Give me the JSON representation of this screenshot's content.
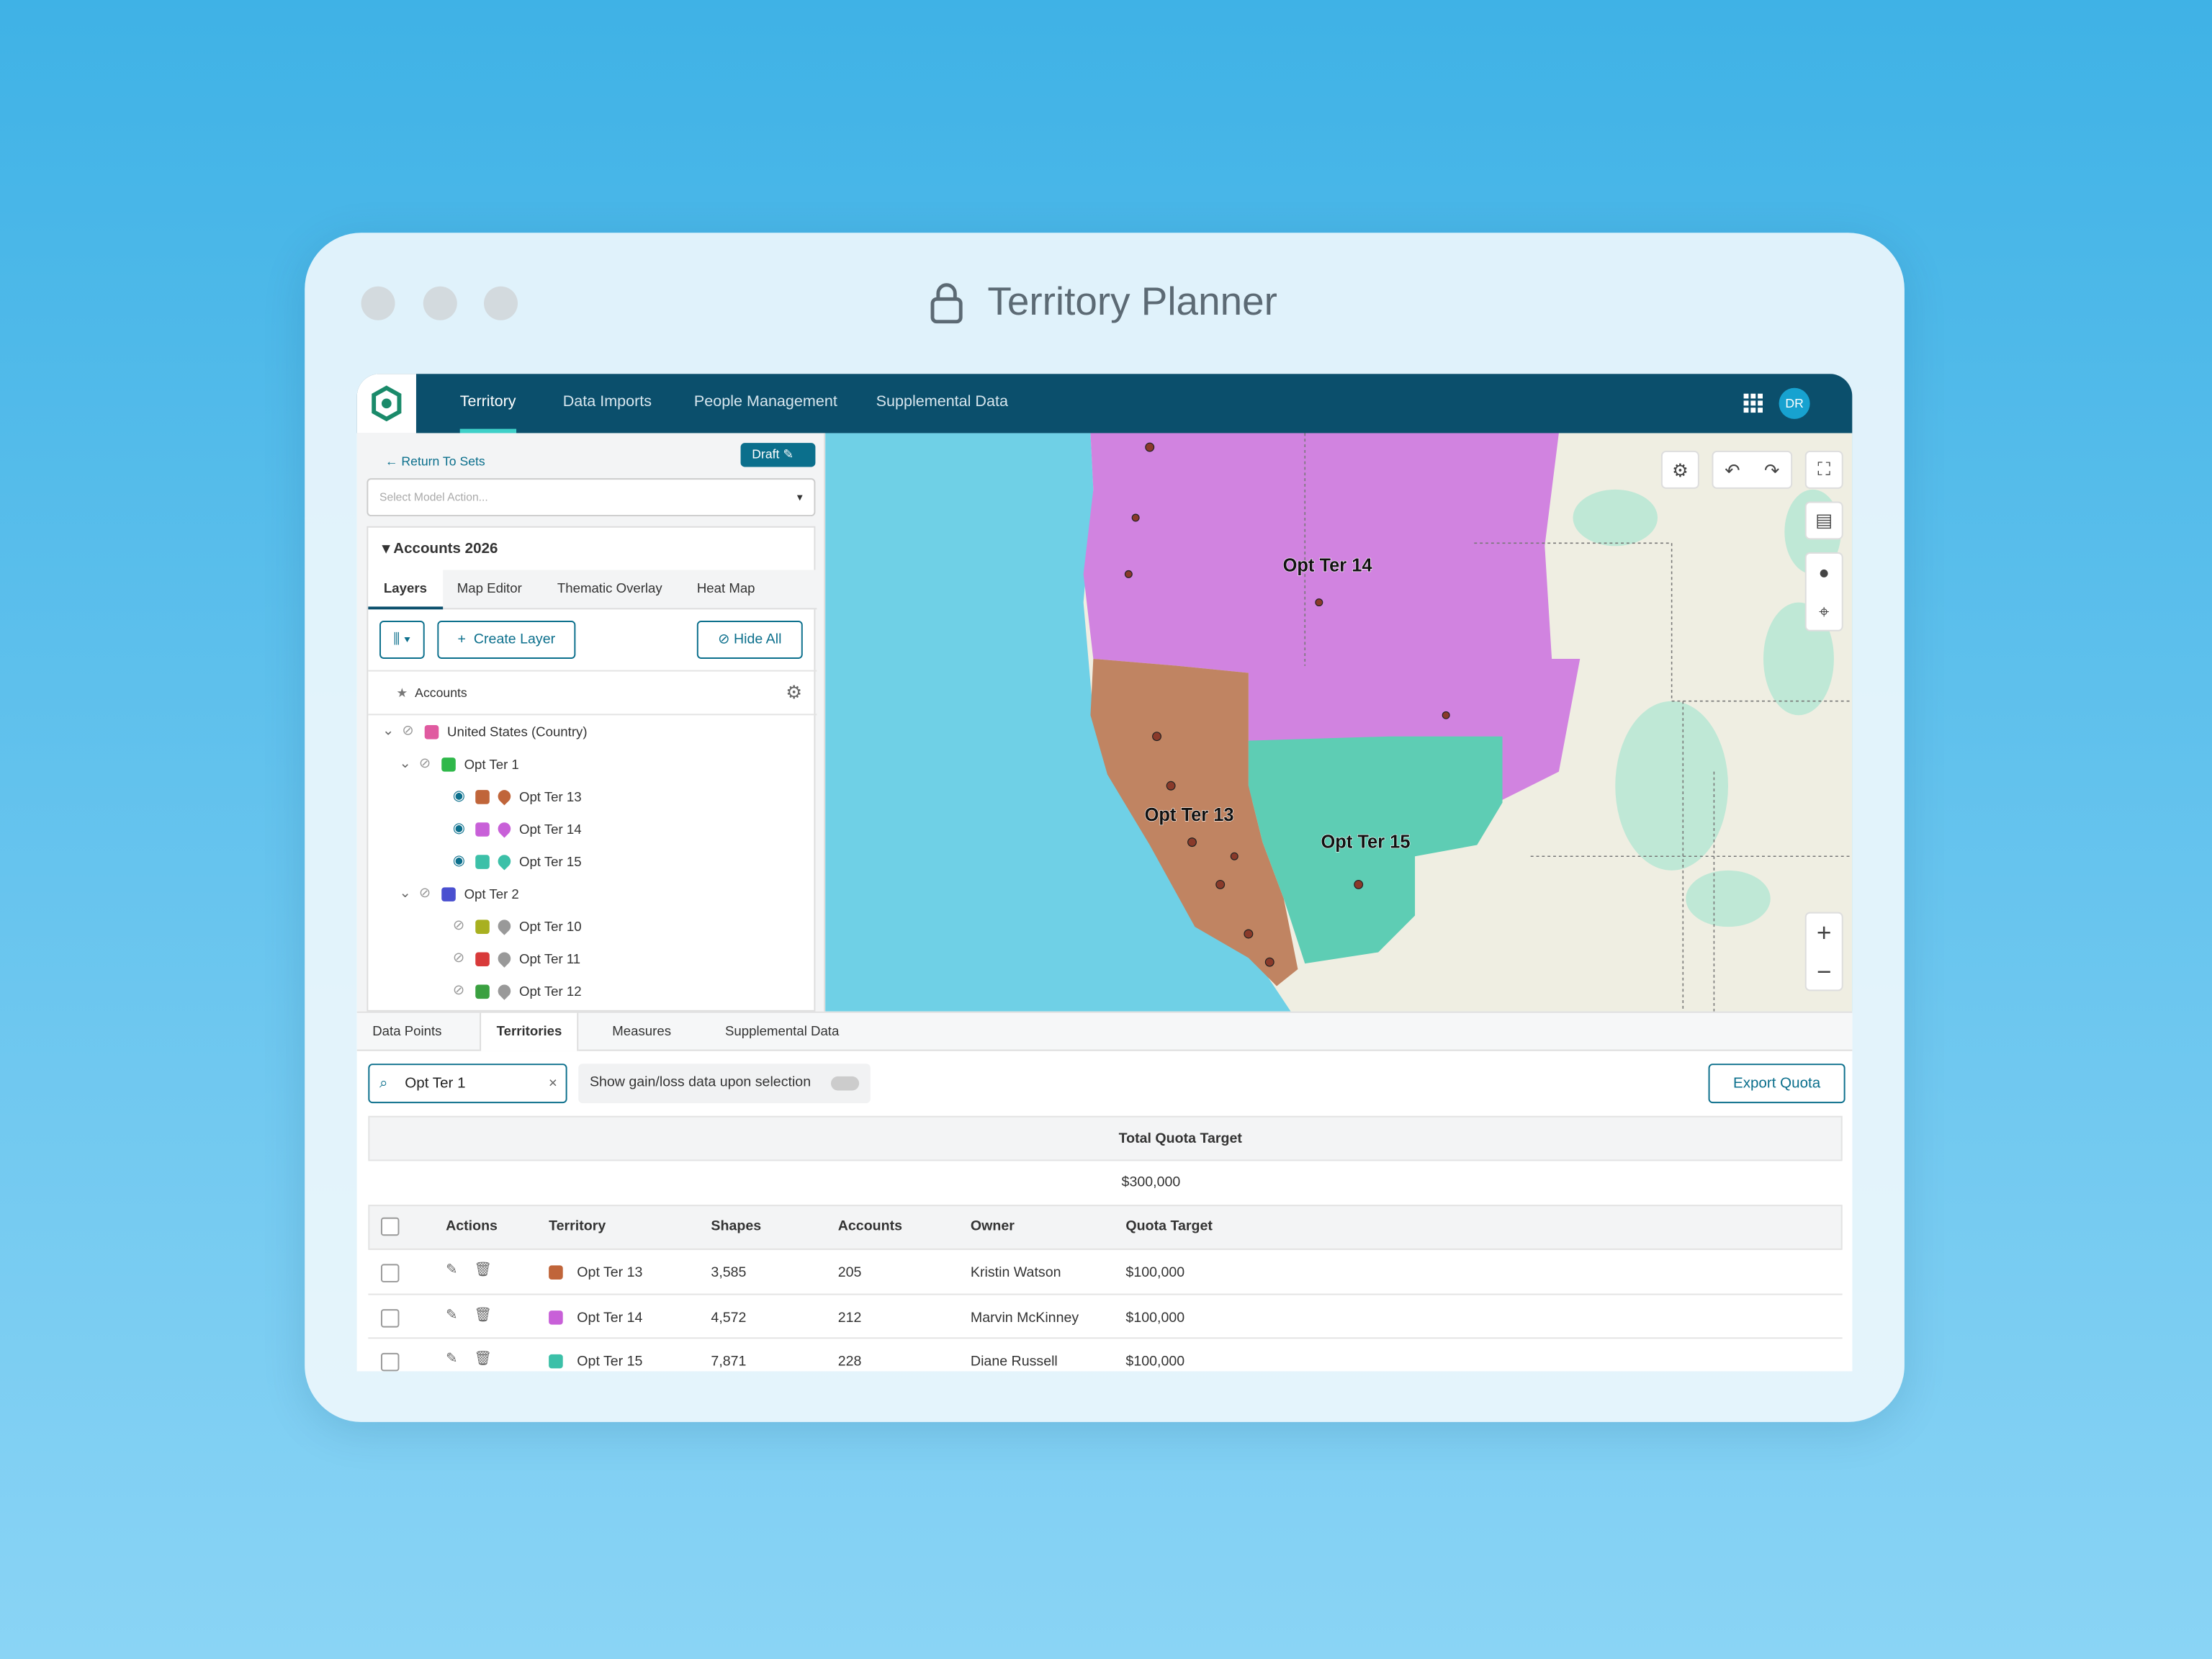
{
  "window": {
    "title": "Territory Planner"
  },
  "nav": {
    "tabs": [
      "Territory",
      "Data Imports",
      "People Management",
      "Supplemental Data"
    ],
    "avatar": "DR"
  },
  "sidebar": {
    "back": "Return To Sets",
    "status": "Draft",
    "model_action_placeholder": "Select Model Action...",
    "section": "Accounts 2026",
    "tabs": [
      "Layers",
      "Map Editor",
      "Thematic Overlay",
      "Heat Map"
    ],
    "create_layer": "Create Layer",
    "hide_all": "Hide All",
    "layer_header": "Accounts",
    "tree": [
      {
        "label": "United States (Country)",
        "level": 0,
        "visible": false,
        "color": "#e05aa0"
      },
      {
        "label": "Opt Ter 1",
        "level": 1,
        "visible": false,
        "color": "#2fb84a"
      },
      {
        "label": "Opt Ter 13",
        "level": 2,
        "visible": true,
        "color": "#c0653a"
      },
      {
        "label": "Opt Ter 14",
        "level": 2,
        "visible": true,
        "color": "#c860d8"
      },
      {
        "label": "Opt Ter 15",
        "level": 2,
        "visible": true,
        "color": "#3cc0a8"
      },
      {
        "label": "Opt Ter 2",
        "level": 1,
        "visible": false,
        "color": "#4a50d0"
      },
      {
        "label": "Opt Ter 10",
        "level": 2,
        "visible": false,
        "color": "#a8b020"
      },
      {
        "label": "Opt Ter 11",
        "level": 2,
        "visible": false,
        "color": "#d83a3a"
      },
      {
        "label": "Opt Ter 12",
        "level": 2,
        "visible": false,
        "color": "#3aa040"
      }
    ]
  },
  "map": {
    "labels": [
      "Opt Ter 14",
      "Opt Ter 13",
      "Opt Ter 15"
    ]
  },
  "bottom": {
    "tabs": [
      "Data Points",
      "Territories",
      "Measures",
      "Supplemental Data"
    ],
    "search": "Opt Ter 1",
    "toggle_label": "Show gain/loss data upon selection",
    "export": "Export Quota",
    "summary": {
      "header": "Total Quota Target",
      "value": "$300,000"
    },
    "table": {
      "columns": [
        "Actions",
        "Territory",
        "Shapes",
        "Accounts",
        "Owner",
        "Quota Target"
      ],
      "rows": [
        [
          "Opt Ter 13",
          "3,585",
          "205",
          "Kristin Watson",
          "$100,000"
        ],
        [
          "Opt Ter 14",
          "4,572",
          "212",
          "Marvin McKinney",
          "$100,000"
        ],
        [
          "Opt Ter 15",
          "7,871",
          "228",
          "Diane Russell",
          "$100,000"
        ]
      ],
      "row_colors": [
        "#c0653a",
        "#c860d8",
        "#3cc0a8"
      ]
    }
  }
}
